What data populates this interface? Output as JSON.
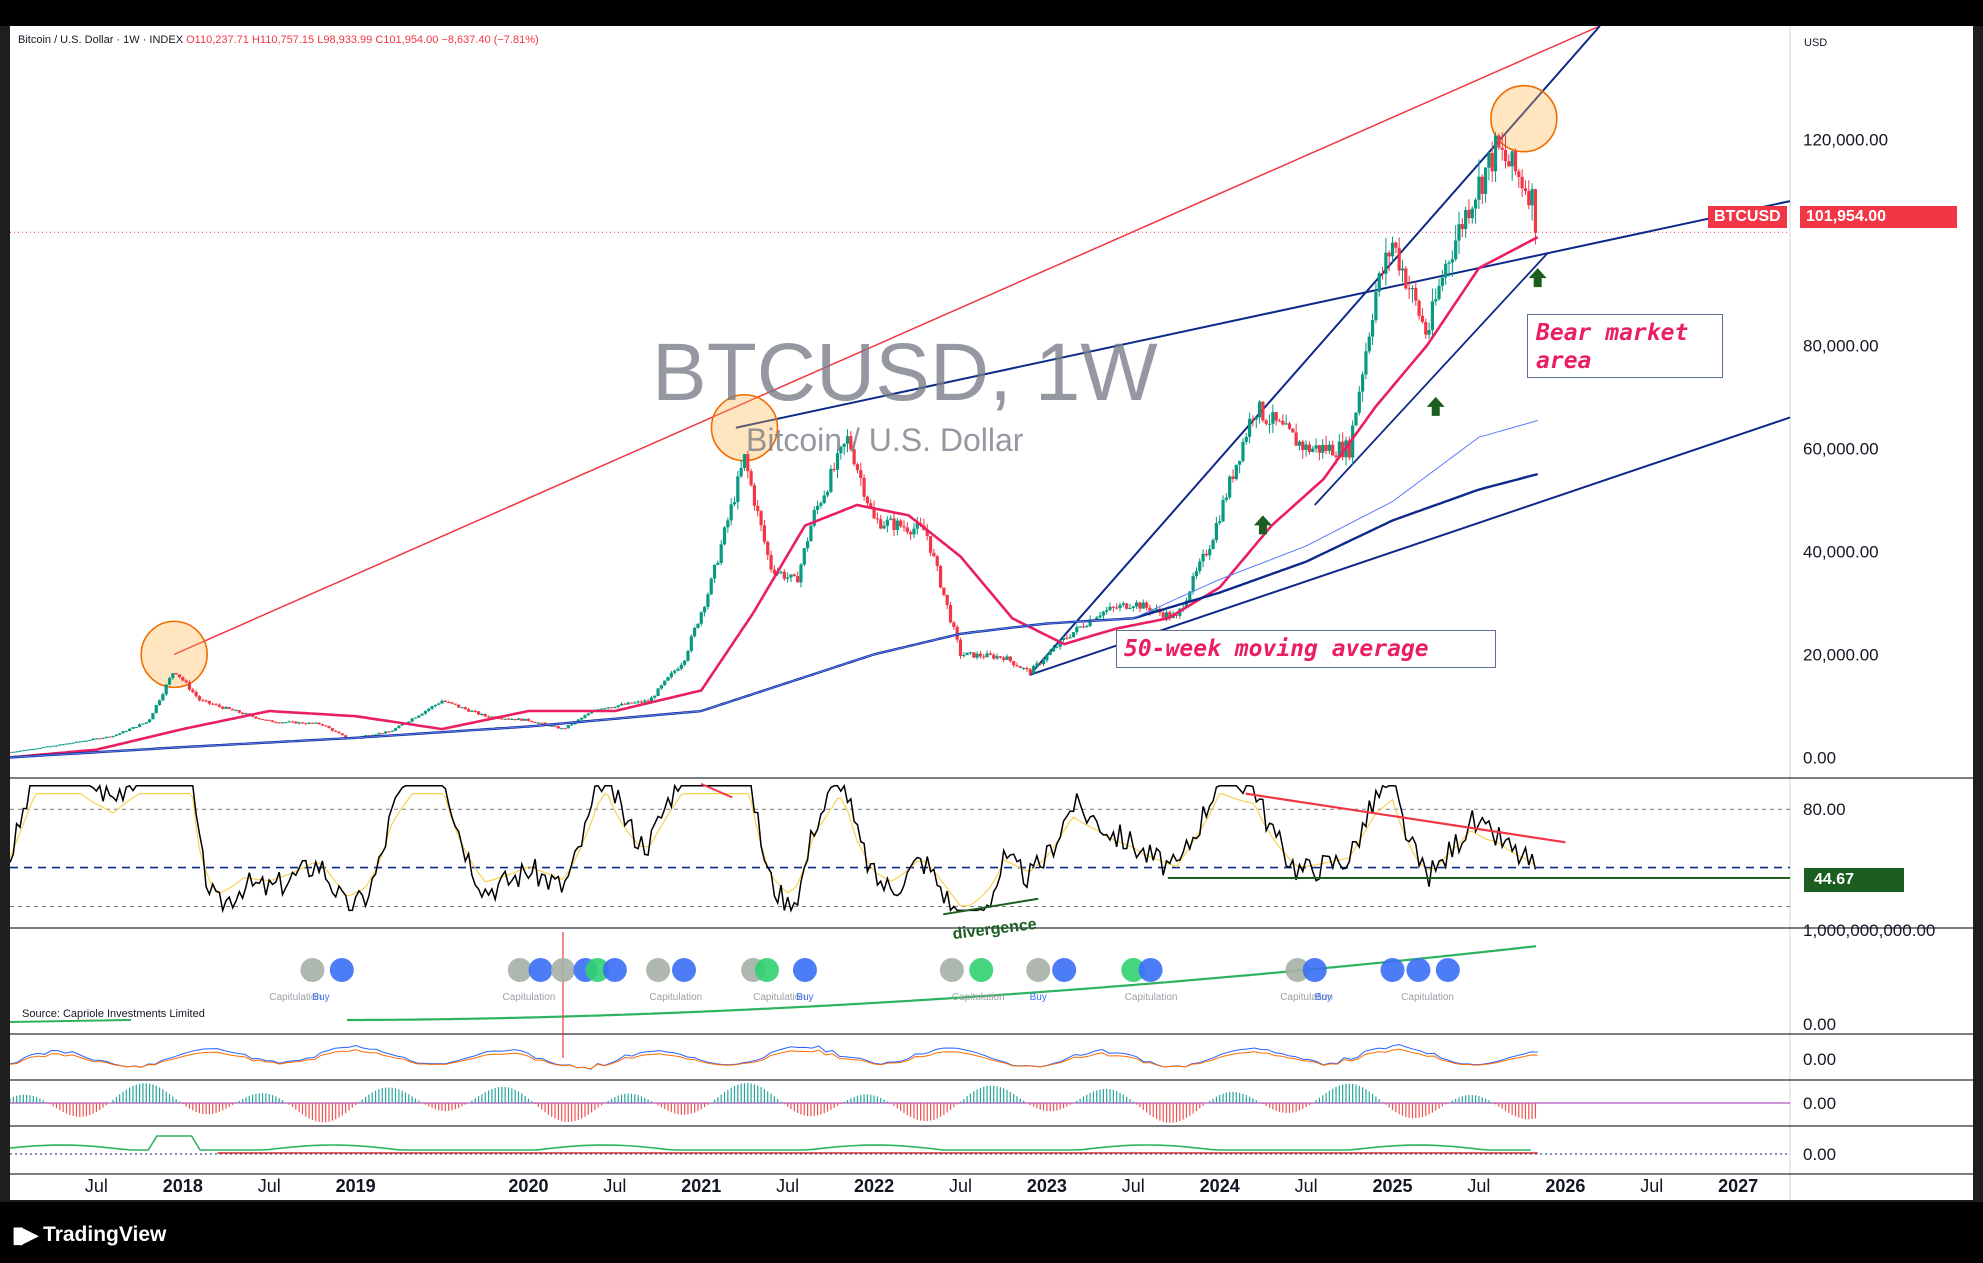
{
  "header": {
    "symbol_desc": "Bitcoin / U.S. Dollar · 1W · INDEX",
    "open": "O110,237.71",
    "high": "H110,757.15",
    "low": "L98,933.99",
    "close": "C101,954.00",
    "change": "−8,637.40 (−7.81%)"
  },
  "watermark": {
    "title": "BTCUSD, 1W",
    "subtitle": "Bitcoin / U.S. Dollar"
  },
  "currency": "USD",
  "annotations": {
    "bear_market_line1": "Bear market",
    "bear_market_line2": "area",
    "ma_note": "50-week moving average",
    "divergence": "divergence"
  },
  "price_tag": {
    "symbol": "BTCUSD",
    "value": "101,954.00"
  },
  "rsi_tag": "44.67",
  "indicator_labels": {
    "rsi_upper": "80.00",
    "capriole_top": "1,000,000,000.00",
    "capriole_bottom": "0.00",
    "macd_zero": "0.00",
    "hist_zero": "0.00",
    "bottom_zero": "0.00",
    "source": "Source: Capriole Investments Limited",
    "capitulation": "Capitulation",
    "buy": "Buy"
  },
  "footer": {
    "brand": "TradingView"
  },
  "colors": {
    "bull": "#089981",
    "bear": "#f23645",
    "ma50": "#e91e63",
    "trend_blue": "#0d2a8a",
    "trend_red": "#f23645",
    "rsi_line": "#000000",
    "rsi_ma": "#f7d353",
    "accent_green": "#1b5e20"
  },
  "chart_data": {
    "type": "line",
    "title": "BTCUSD, 1W",
    "subtitle": "Bitcoin / U.S. Dollar",
    "ylabel": "USD",
    "ylim": [
      -4000,
      142000
    ],
    "y_ticks": [
      0,
      20000,
      40000,
      60000,
      80000,
      100000,
      120000
    ],
    "y_tick_labels": [
      "0.00",
      "20,000.00",
      "40,000.00",
      "60,000.00",
      "80,000.00",
      "",
      "120,000.00"
    ],
    "x_ticks": [
      2017.5,
      2018,
      2018.5,
      2019,
      2020,
      2020.5,
      2021,
      2021.5,
      2022,
      2022.5,
      2023,
      2023.5,
      2024,
      2024.5,
      2025,
      2025.5,
      2026,
      2026.5,
      2027
    ],
    "x_tick_labels": [
      "Jul",
      "2018",
      "Jul",
      "2019",
      "2020",
      "Jul",
      "2021",
      "Jul",
      "2022",
      "Jul",
      "2023",
      "Jul",
      "2024",
      "Jul",
      "2025",
      "Jul",
      "2026",
      "Jul",
      "2027"
    ],
    "series": [
      {
        "name": "BTCUSD",
        "x": [
          2017.0,
          2017.3,
          2017.6,
          2017.8,
          2017.95,
          2018.1,
          2018.3,
          2018.5,
          2018.8,
          2018.95,
          2019.2,
          2019.5,
          2019.75,
          2020.0,
          2020.2,
          2020.4,
          2020.7,
          2020.9,
          2021.05,
          2021.25,
          2021.4,
          2021.55,
          2021.65,
          2021.85,
          2022.0,
          2022.3,
          2022.5,
          2022.75,
          2022.9,
          2023.1,
          2023.3,
          2023.5,
          2023.75,
          2023.95,
          2024.2,
          2024.5,
          2024.75,
          2024.9,
          2025.0,
          2025.2,
          2025.3,
          2025.45,
          2025.6,
          2025.75,
          2025.8,
          2025.84
        ],
        "values": [
          1000,
          2500,
          4200,
          7000,
          17000,
          11000,
          9000,
          7000,
          6500,
          3700,
          5000,
          11000,
          8000,
          7200,
          5500,
          9500,
          11000,
          19000,
          33000,
          58000,
          37000,
          34000,
          47000,
          62000,
          46000,
          44000,
          20000,
          19500,
          16500,
          23000,
          28000,
          30000,
          27000,
          42000,
          68000,
          60000,
          60000,
          90000,
          100000,
          82000,
          95000,
          108000,
          118000,
          112000,
          110000,
          101954
        ]
      },
      {
        "name": "",
        "x": [
          2017.0,
          2017.5,
          2018.0,
          2018.5,
          2019.0,
          2019.5,
          2020.0,
          2020.5,
          2021.0,
          2021.3,
          2021.6,
          2021.9,
          2022.2,
          2022.5,
          2022.8,
          2023.1,
          2023.4,
          2023.7,
          2024.0,
          2024.3,
          2024.6,
          2024.9,
          2025.2,
          2025.5,
          2025.84
        ],
        "values": [
          0,
          1500,
          5500,
          9000,
          8000,
          5500,
          9000,
          9000,
          13000,
          28000,
          45000,
          49000,
          47000,
          39000,
          27000,
          22000,
          25000,
          27000,
          33000,
          45000,
          54000,
          68000,
          80000,
          95000,
          101000
        ]
      },
      {
        "name": "",
        "x": [
          2017.0,
          2018.0,
          2019.0,
          2020.0,
          2021.0,
          2022.0,
          2022.5,
          2023.0,
          2023.5,
          2024.0,
          2024.5,
          2025.0,
          2025.5,
          2025.84
        ],
        "values": [
          0,
          2000,
          3800,
          6000,
          9000,
          20000,
          24000,
          26000,
          27000,
          32000,
          38000,
          46000,
          52000,
          55000
        ]
      }
    ],
    "highlights": [
      {
        "x": 2017.95,
        "y": 20000
      },
      {
        "x": 2021.25,
        "y": 64000
      },
      {
        "x": 2025.76,
        "y": 124000
      }
    ],
    "rsi": {
      "ylim": [
        20,
        95
      ],
      "upper_label": "80.00",
      "last": 44.67
    },
    "annotations": [
      "Bear market area",
      "50-week moving average"
    ]
  }
}
